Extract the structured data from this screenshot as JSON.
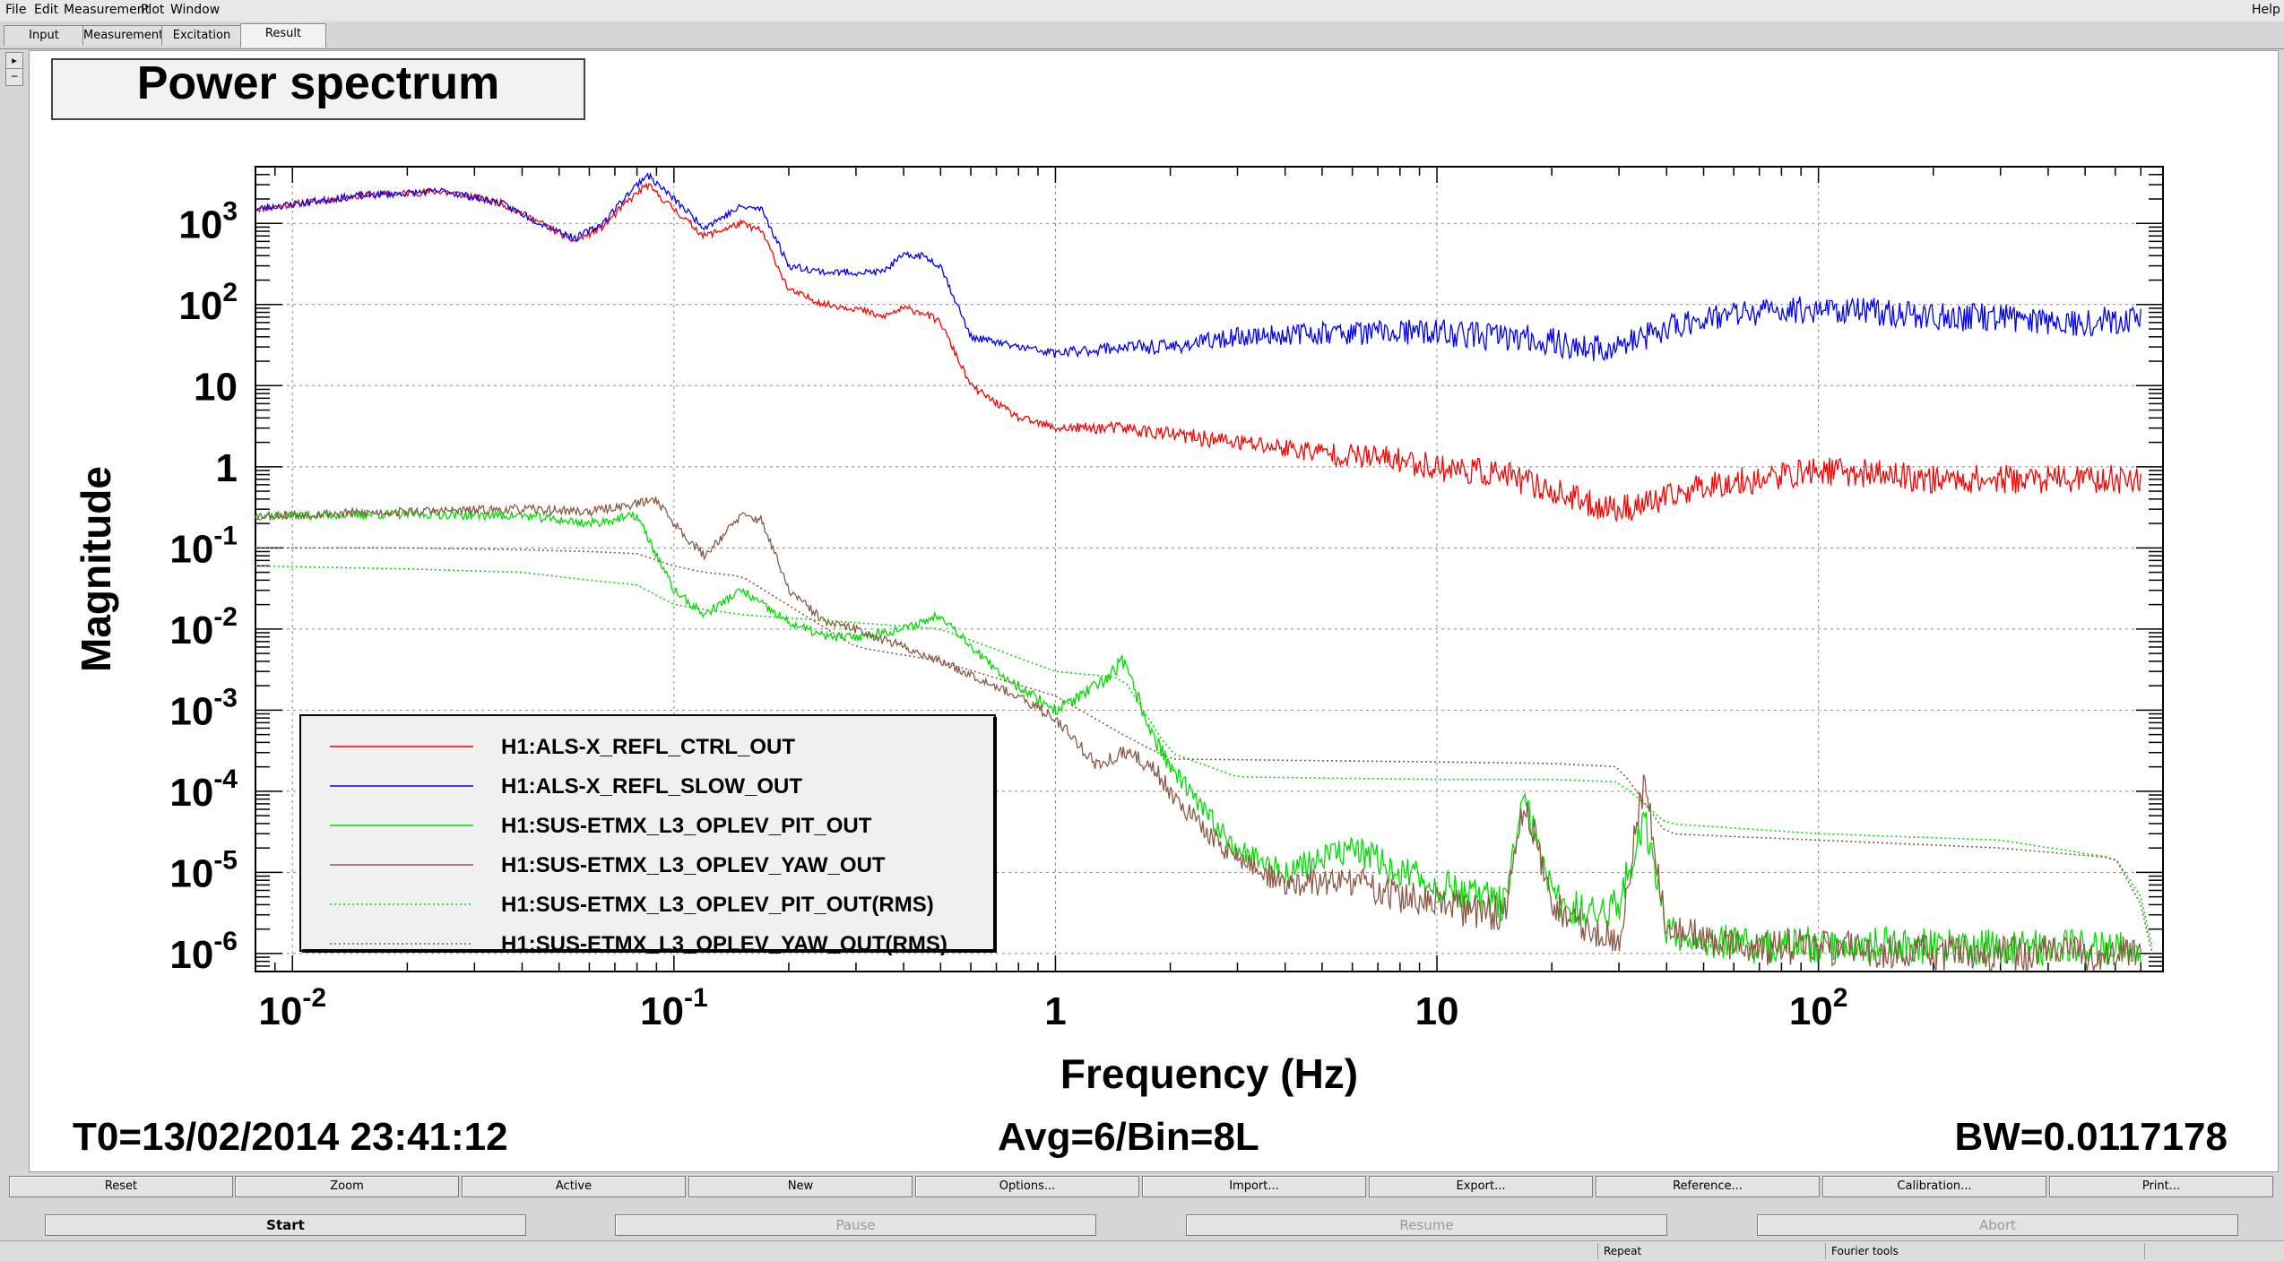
{
  "menu": {
    "file": "File",
    "edit": "Edit",
    "measurement": "Measurement",
    "plot": "Plot",
    "window": "Window",
    "help": "Help"
  },
  "tabs": {
    "input": "Input",
    "measurement": "Measurement",
    "excitation": "Excitation",
    "result": "Result"
  },
  "chart_data": {
    "type": "line",
    "title": "Power spectrum",
    "xlabel": "Frequency (Hz)",
    "ylabel": "Magnitude",
    "x_scale": "log",
    "y_scale": "log",
    "xlim": [
      0.008,
      800
    ],
    "ylim": [
      6e-07,
      5000
    ],
    "x_ticks": [
      {
        "value": 0.01,
        "base": "10",
        "exp": "-2"
      },
      {
        "value": 0.1,
        "base": "10",
        "exp": "-1"
      },
      {
        "value": 1,
        "base": "1",
        "exp": ""
      },
      {
        "value": 10,
        "base": "10",
        "exp": ""
      },
      {
        "value": 100,
        "base": "10",
        "exp": "2"
      }
    ],
    "y_ticks": [
      {
        "value": 1000,
        "base": "10",
        "exp": "3"
      },
      {
        "value": 100,
        "base": "10",
        "exp": "2"
      },
      {
        "value": 10,
        "base": "10",
        "exp": ""
      },
      {
        "value": 1,
        "base": "1",
        "exp": ""
      },
      {
        "value": 0.1,
        "base": "10",
        "exp": "-1"
      },
      {
        "value": 0.01,
        "base": "10",
        "exp": "-2"
      },
      {
        "value": 0.001,
        "base": "10",
        "exp": "-3"
      },
      {
        "value": 0.0001,
        "base": "10",
        "exp": "-4"
      },
      {
        "value": 1e-05,
        "base": "10",
        "exp": "-5"
      },
      {
        "value": 1e-06,
        "base": "10",
        "exp": "-6"
      }
    ],
    "grid": true,
    "legend_position": "bottom-left",
    "series": [
      {
        "name": "H1:ALS-X_REFL_CTRL_OUT",
        "color": "#ff0000",
        "style": "solid",
        "noise": 0.35,
        "seed": 11,
        "x": [
          0.008,
          0.015,
          0.025,
          0.035,
          0.045,
          0.055,
          0.065,
          0.075,
          0.085,
          0.1,
          0.12,
          0.15,
          0.17,
          0.2,
          0.25,
          0.3,
          0.35,
          0.4,
          0.45,
          0.5,
          0.6,
          0.8,
          1.0,
          1.5,
          2,
          3,
          5,
          8,
          10,
          15,
          20,
          25,
          30,
          40,
          50,
          70,
          100,
          150,
          200,
          300,
          500,
          700
        ],
        "y": [
          1500,
          2200,
          2500,
          1800,
          1000,
          600,
          900,
          1800,
          3000,
          1500,
          700,
          1000,
          800,
          150,
          100,
          90,
          70,
          90,
          80,
          60,
          10,
          4,
          3,
          3,
          2.5,
          2,
          1.5,
          1.2,
          1,
          0.8,
          0.5,
          0.35,
          0.3,
          0.4,
          0.6,
          0.7,
          0.9,
          0.8,
          0.7,
          0.7,
          0.7,
          0.7
        ]
      },
      {
        "name": "H1:ALS-X_REFL_SLOW_OUT",
        "color": "#0000ff",
        "style": "solid",
        "noise": 0.35,
        "seed": 23,
        "x": [
          0.008,
          0.015,
          0.025,
          0.035,
          0.045,
          0.055,
          0.065,
          0.075,
          0.085,
          0.1,
          0.12,
          0.15,
          0.17,
          0.2,
          0.25,
          0.3,
          0.35,
          0.4,
          0.45,
          0.5,
          0.6,
          0.8,
          1.0,
          1.5,
          2,
          3,
          5,
          8,
          10,
          15,
          20,
          25,
          30,
          40,
          50,
          70,
          100,
          150,
          200,
          300,
          500,
          700
        ],
        "y": [
          1500,
          2200,
          2500,
          1800,
          1000,
          650,
          1000,
          2200,
          4000,
          2000,
          900,
          1600,
          1500,
          300,
          250,
          250,
          250,
          400,
          400,
          300,
          40,
          30,
          25,
          30,
          30,
          40,
          45,
          45,
          45,
          40,
          35,
          28,
          30,
          50,
          70,
          80,
          90,
          80,
          70,
          70,
          60,
          70
        ]
      },
      {
        "name": "H1:SUS-ETMX_L3_OPLEV_PIT_OUT",
        "color": "#00dd00",
        "style": "solid",
        "noise": 0.45,
        "seed": 37,
        "x": [
          0.008,
          0.02,
          0.04,
          0.06,
          0.08,
          0.1,
          0.12,
          0.15,
          0.2,
          0.25,
          0.3,
          0.4,
          0.5,
          0.7,
          1.0,
          1.3,
          1.5,
          1.8,
          2.0,
          2.5,
          3,
          4,
          6,
          8,
          10,
          15,
          17,
          20,
          25,
          30,
          35,
          40,
          50,
          70,
          100,
          150,
          200,
          300,
          500,
          700
        ],
        "y": [
          0.25,
          0.26,
          0.25,
          0.2,
          0.25,
          0.03,
          0.015,
          0.03,
          0.012,
          0.008,
          0.008,
          0.01,
          0.015,
          0.003,
          0.001,
          0.002,
          0.004,
          0.0005,
          0.0002,
          5e-05,
          2e-05,
          1e-05,
          2e-05,
          1e-05,
          7e-06,
          4e-06,
          8e-05,
          5e-06,
          3e-06,
          4e-06,
          5e-05,
          2e-06,
          1.5e-06,
          1.2e-06,
          1.3e-06,
          1.3e-06,
          1.2e-06,
          1.2e-06,
          1.2e-06,
          1.2e-06
        ]
      },
      {
        "name": "H1:SUS-ETMX_L3_OPLEV_YAW_OUT",
        "color": "#8b5a46",
        "style": "solid",
        "noise": 0.45,
        "seed": 53,
        "x": [
          0.008,
          0.02,
          0.04,
          0.06,
          0.08,
          0.09,
          0.1,
          0.12,
          0.15,
          0.17,
          0.2,
          0.25,
          0.3,
          0.4,
          0.5,
          0.7,
          1.0,
          1.3,
          1.5,
          1.8,
          2.0,
          2.5,
          3,
          4,
          6,
          8,
          10,
          15,
          17,
          20,
          25,
          30,
          35,
          40,
          50,
          70,
          100,
          150,
          200,
          300,
          500,
          700
        ],
        "y": [
          0.25,
          0.28,
          0.3,
          0.28,
          0.35,
          0.4,
          0.2,
          0.08,
          0.25,
          0.22,
          0.03,
          0.012,
          0.01,
          0.006,
          0.004,
          0.002,
          0.0008,
          0.0002,
          0.0003,
          0.0002,
          0.0001,
          3e-05,
          1.5e-05,
          7e-06,
          8e-06,
          5e-06,
          4e-06,
          3e-06,
          8e-05,
          4e-06,
          2e-06,
          1.5e-06,
          0.00015,
          2e-06,
          1.5e-06,
          1.2e-06,
          1.2e-06,
          1.1e-06,
          1e-06,
          1e-06,
          1e-06,
          1e-06
        ]
      },
      {
        "name": "H1:SUS-ETMX_L3_OPLEV_PIT_OUT(RMS)",
        "color": "#00dd00",
        "style": "dotted",
        "noise": 0,
        "seed": 0,
        "x": [
          0.008,
          0.02,
          0.04,
          0.06,
          0.08,
          0.1,
          0.15,
          0.3,
          0.5,
          1.0,
          1.5,
          2.0,
          3,
          10,
          20,
          30,
          40,
          100,
          300,
          600,
          700,
          750
        ],
        "y": [
          0.06,
          0.055,
          0.05,
          0.04,
          0.035,
          0.02,
          0.015,
          0.012,
          0.01,
          0.003,
          0.0025,
          0.0003,
          0.00015,
          0.00014,
          0.00014,
          0.00013,
          4e-05,
          3e-05,
          2.5e-05,
          1.5e-05,
          5e-06,
          1.2e-06
        ]
      },
      {
        "name": "H1:SUS-ETMX_L3_OPLEV_YAW_OUT(RMS)",
        "color": "#8b5a46",
        "style": "dotted",
        "noise": 0,
        "seed": 0,
        "x": [
          0.008,
          0.02,
          0.04,
          0.06,
          0.08,
          0.1,
          0.12,
          0.15,
          0.3,
          0.5,
          1.0,
          1.5,
          2.0,
          10,
          20,
          30,
          40,
          100,
          300,
          600,
          700,
          750
        ],
        "y": [
          0.1,
          0.1,
          0.095,
          0.09,
          0.085,
          0.06,
          0.05,
          0.045,
          0.006,
          0.004,
          0.0015,
          0.0005,
          0.00025,
          0.00023,
          0.00022,
          0.0002,
          3e-05,
          2.5e-05,
          2e-05,
          1.5e-05,
          4e-06,
          1e-06
        ]
      }
    ]
  },
  "footer": {
    "t0": "T0=13/02/2014 23:41:12",
    "avg": "Avg=6/Bin=8L",
    "bw": "BW=0.0117178"
  },
  "toolbar_row1": [
    "Reset",
    "Zoom",
    "Active",
    "New",
    "Options...",
    "Import...",
    "Export...",
    "Reference...",
    "Calibration...",
    "Print..."
  ],
  "toolbar_row2": {
    "start": "Start",
    "pause": "Pause",
    "resume": "Resume",
    "abort": "Abort"
  },
  "status": {
    "repeat": "Repeat",
    "fourier": "Fourier tools"
  }
}
